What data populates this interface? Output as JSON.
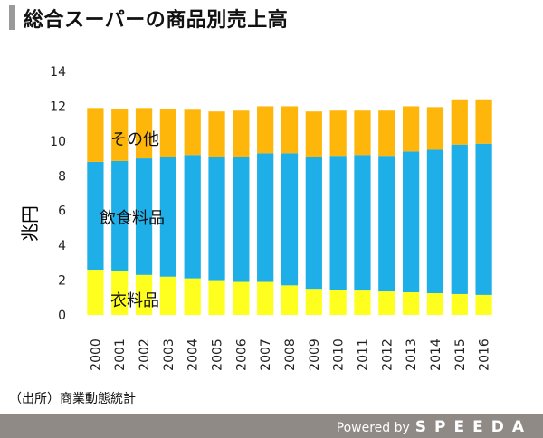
{
  "title": "総合スーパーの商品別売上高",
  "source": "（出所）商業動態統計",
  "footer": {
    "powered": "Powered by",
    "brand": "SPEEDA"
  },
  "colors": {
    "clothing": "#ffff1f",
    "food": "#1eaee8",
    "other": "#ffb60a",
    "title_bar": "#9a9a9a",
    "footer_bg": "#8f8a86"
  },
  "chart_data": {
    "type": "bar",
    "stacked": true,
    "ylabel": "兆円",
    "ylim": [
      0,
      14
    ],
    "yticks": [
      0,
      2,
      4,
      6,
      8,
      10,
      12,
      14
    ],
    "categories": [
      "2000",
      "2001",
      "2002",
      "2003",
      "2004",
      "2005",
      "2006",
      "2007",
      "2008",
      "2009",
      "2010",
      "2011",
      "2012",
      "2013",
      "2014",
      "2015",
      "2016"
    ],
    "series": [
      {
        "name": "衣料品",
        "color": "#ffff1f",
        "values": [
          2.6,
          2.5,
          2.3,
          2.2,
          2.1,
          2.0,
          1.9,
          1.9,
          1.7,
          1.5,
          1.45,
          1.4,
          1.35,
          1.3,
          1.25,
          1.2,
          1.15
        ]
      },
      {
        "name": "飲食料品",
        "color": "#1eaee8",
        "values": [
          6.2,
          6.35,
          6.7,
          6.9,
          7.1,
          7.1,
          7.2,
          7.4,
          7.6,
          7.6,
          7.7,
          7.8,
          7.8,
          8.1,
          8.25,
          8.6,
          8.7
        ]
      },
      {
        "name": "その他",
        "color": "#ffb60a",
        "values": [
          3.1,
          3.0,
          2.9,
          2.75,
          2.6,
          2.6,
          2.65,
          2.7,
          2.7,
          2.6,
          2.6,
          2.55,
          2.6,
          2.6,
          2.45,
          2.6,
          2.55
        ]
      }
    ],
    "grid": false,
    "legend": "inline"
  }
}
